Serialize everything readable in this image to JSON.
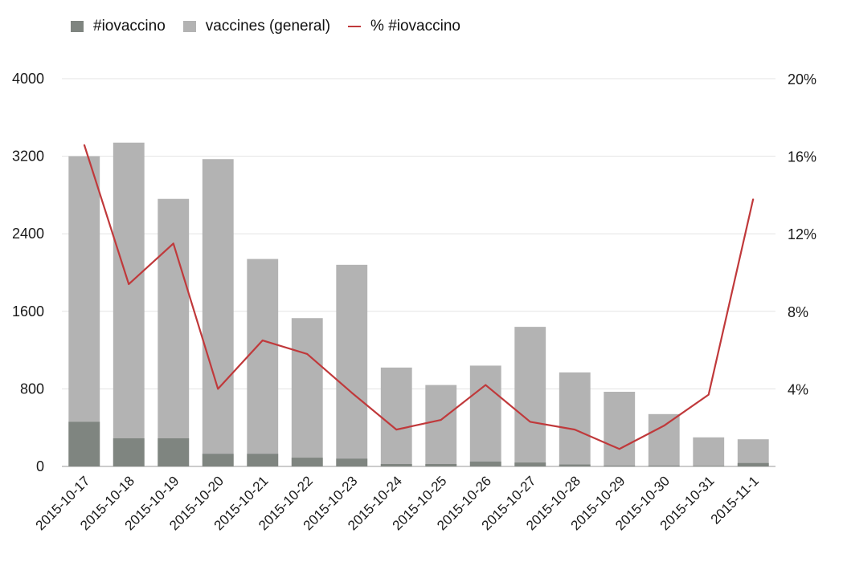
{
  "legend": {
    "items": [
      {
        "label": "#iovaccino",
        "color": "#7f8580",
        "kind": "bar"
      },
      {
        "label": "vaccines (general)",
        "color": "#b3b3b3",
        "kind": "bar"
      },
      {
        "label": "% #iovaccino",
        "color": "#c0393b",
        "kind": "line"
      }
    ]
  },
  "chart_data": {
    "type": "bar",
    "title": "",
    "xlabel": "",
    "ylabel": "",
    "categories": [
      "2015-10-17",
      "2015-10-18",
      "2015-10-19",
      "2015-10-20",
      "2015-10-21",
      "2015-10-22",
      "2015-10-23",
      "2015-10-24",
      "2015-10-25",
      "2015-10-26",
      "2015-10-27",
      "2015-10-28",
      "2015-10-29",
      "2015-10-30",
      "2015-10-31",
      "2015-11-1"
    ],
    "ylim": [
      0,
      4000
    ],
    "yticks": [
      "0",
      "800",
      "1600",
      "2400",
      "3200",
      "4000"
    ],
    "y2lim": [
      0,
      20
    ],
    "y2ticks": [
      "4%",
      "8%",
      "12%",
      "16%",
      "20%"
    ],
    "grid": true,
    "legend_position": "top-left",
    "series": [
      {
        "name": "vaccines (general)",
        "type": "bar",
        "color": "#b3b3b3",
        "values": [
          3200,
          3340,
          2760,
          3170,
          2140,
          1530,
          2080,
          1020,
          840,
          1040,
          1440,
          970,
          770,
          540,
          300,
          280
        ]
      },
      {
        "name": "#iovaccino",
        "type": "bar",
        "color": "#7f8580",
        "values": [
          460,
          290,
          290,
          130,
          130,
          90,
          80,
          25,
          25,
          50,
          40,
          20,
          8,
          8,
          5,
          35
        ]
      },
      {
        "name": "% #iovaccino",
        "type": "line",
        "axis": "right",
        "color": "#c0393b",
        "values": [
          16.6,
          9.4,
          11.5,
          4.0,
          6.5,
          5.8,
          3.8,
          1.9,
          2.4,
          4.2,
          2.3,
          1.9,
          0.9,
          2.1,
          3.7,
          13.8
        ]
      }
    ]
  }
}
